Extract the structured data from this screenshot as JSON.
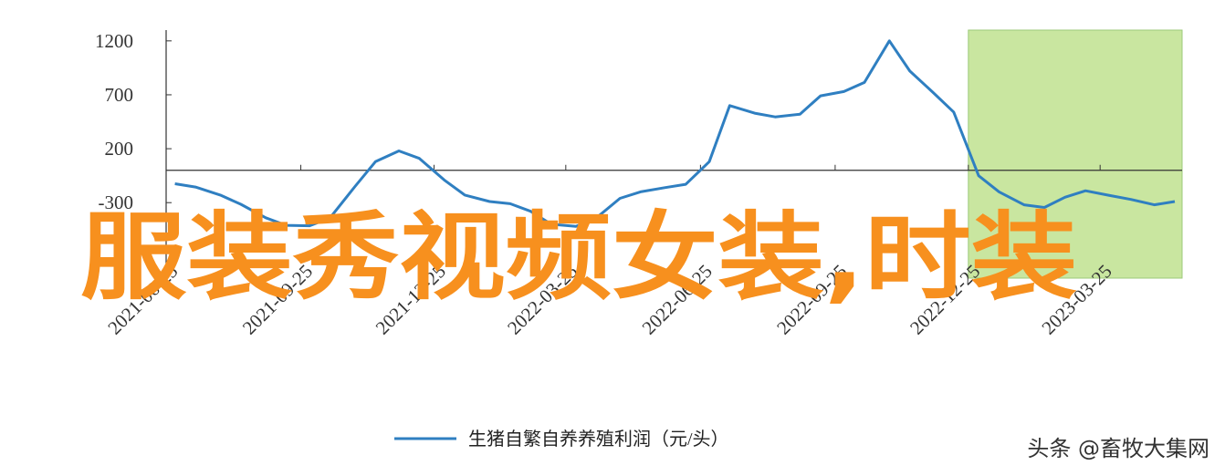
{
  "chart_data": {
    "type": "line",
    "x": [
      "2021-07-01",
      "2021-07-15",
      "2021-08-01",
      "2021-08-15",
      "2021-09-01",
      "2021-09-15",
      "2021-10-01",
      "2021-10-15",
      "2021-11-01",
      "2021-11-15",
      "2021-12-01",
      "2021-12-15",
      "2022-01-01",
      "2022-01-15",
      "2022-02-01",
      "2022-02-15",
      "2022-03-01",
      "2022-03-15",
      "2022-04-01",
      "2022-04-15",
      "2022-05-01",
      "2022-05-15",
      "2022-06-01",
      "2022-06-15",
      "2022-07-01",
      "2022-07-15",
      "2022-08-01",
      "2022-08-15",
      "2022-09-01",
      "2022-09-15",
      "2022-10-01",
      "2022-10-15",
      "2022-11-01",
      "2022-11-15",
      "2022-12-01",
      "2022-12-15",
      "2023-01-01",
      "2023-01-15",
      "2023-02-01",
      "2023-02-15",
      "2023-03-01",
      "2023-03-15",
      "2023-04-01",
      "2023-04-15",
      "2023-05-01",
      "2023-05-15"
    ],
    "series": [
      {
        "name": "生猪自繁自养养殖利润（元/头）",
        "color": "#2f7fc1",
        "values": [
          -125,
          -155,
          -230,
          -315,
          -440,
          -510,
          -515,
          -440,
          -150,
          80,
          180,
          110,
          -90,
          -230,
          -290,
          -310,
          -380,
          -500,
          -520,
          -440,
          -260,
          -200,
          -160,
          -130,
          80,
          600,
          530,
          495,
          520,
          690,
          730,
          815,
          1200,
          920,
          720,
          540,
          -50,
          -200,
          -320,
          -345,
          -250,
          -190,
          -235,
          -270,
          -320,
          -290
        ]
      }
    ],
    "xlim": [
      "2021-06-25",
      "2023-05-20"
    ],
    "xticks": [
      "2021-06-25",
      "2021-09-25",
      "2021-12-25",
      "2022-03-25",
      "2022-06-25",
      "2022-09-25",
      "2022-12-25",
      "2023-03-25"
    ],
    "ylim": [
      -1000,
      1300
    ],
    "yticks": [
      -300,
      200,
      700,
      1200
    ],
    "highlight": {
      "x": [
        "2022-12-25",
        "2023-05-20"
      ],
      "color": "#c9e6a0"
    }
  },
  "overlay_text": "服装秀视频女装,时装",
  "watermark": "头条 @畜牧大集网"
}
